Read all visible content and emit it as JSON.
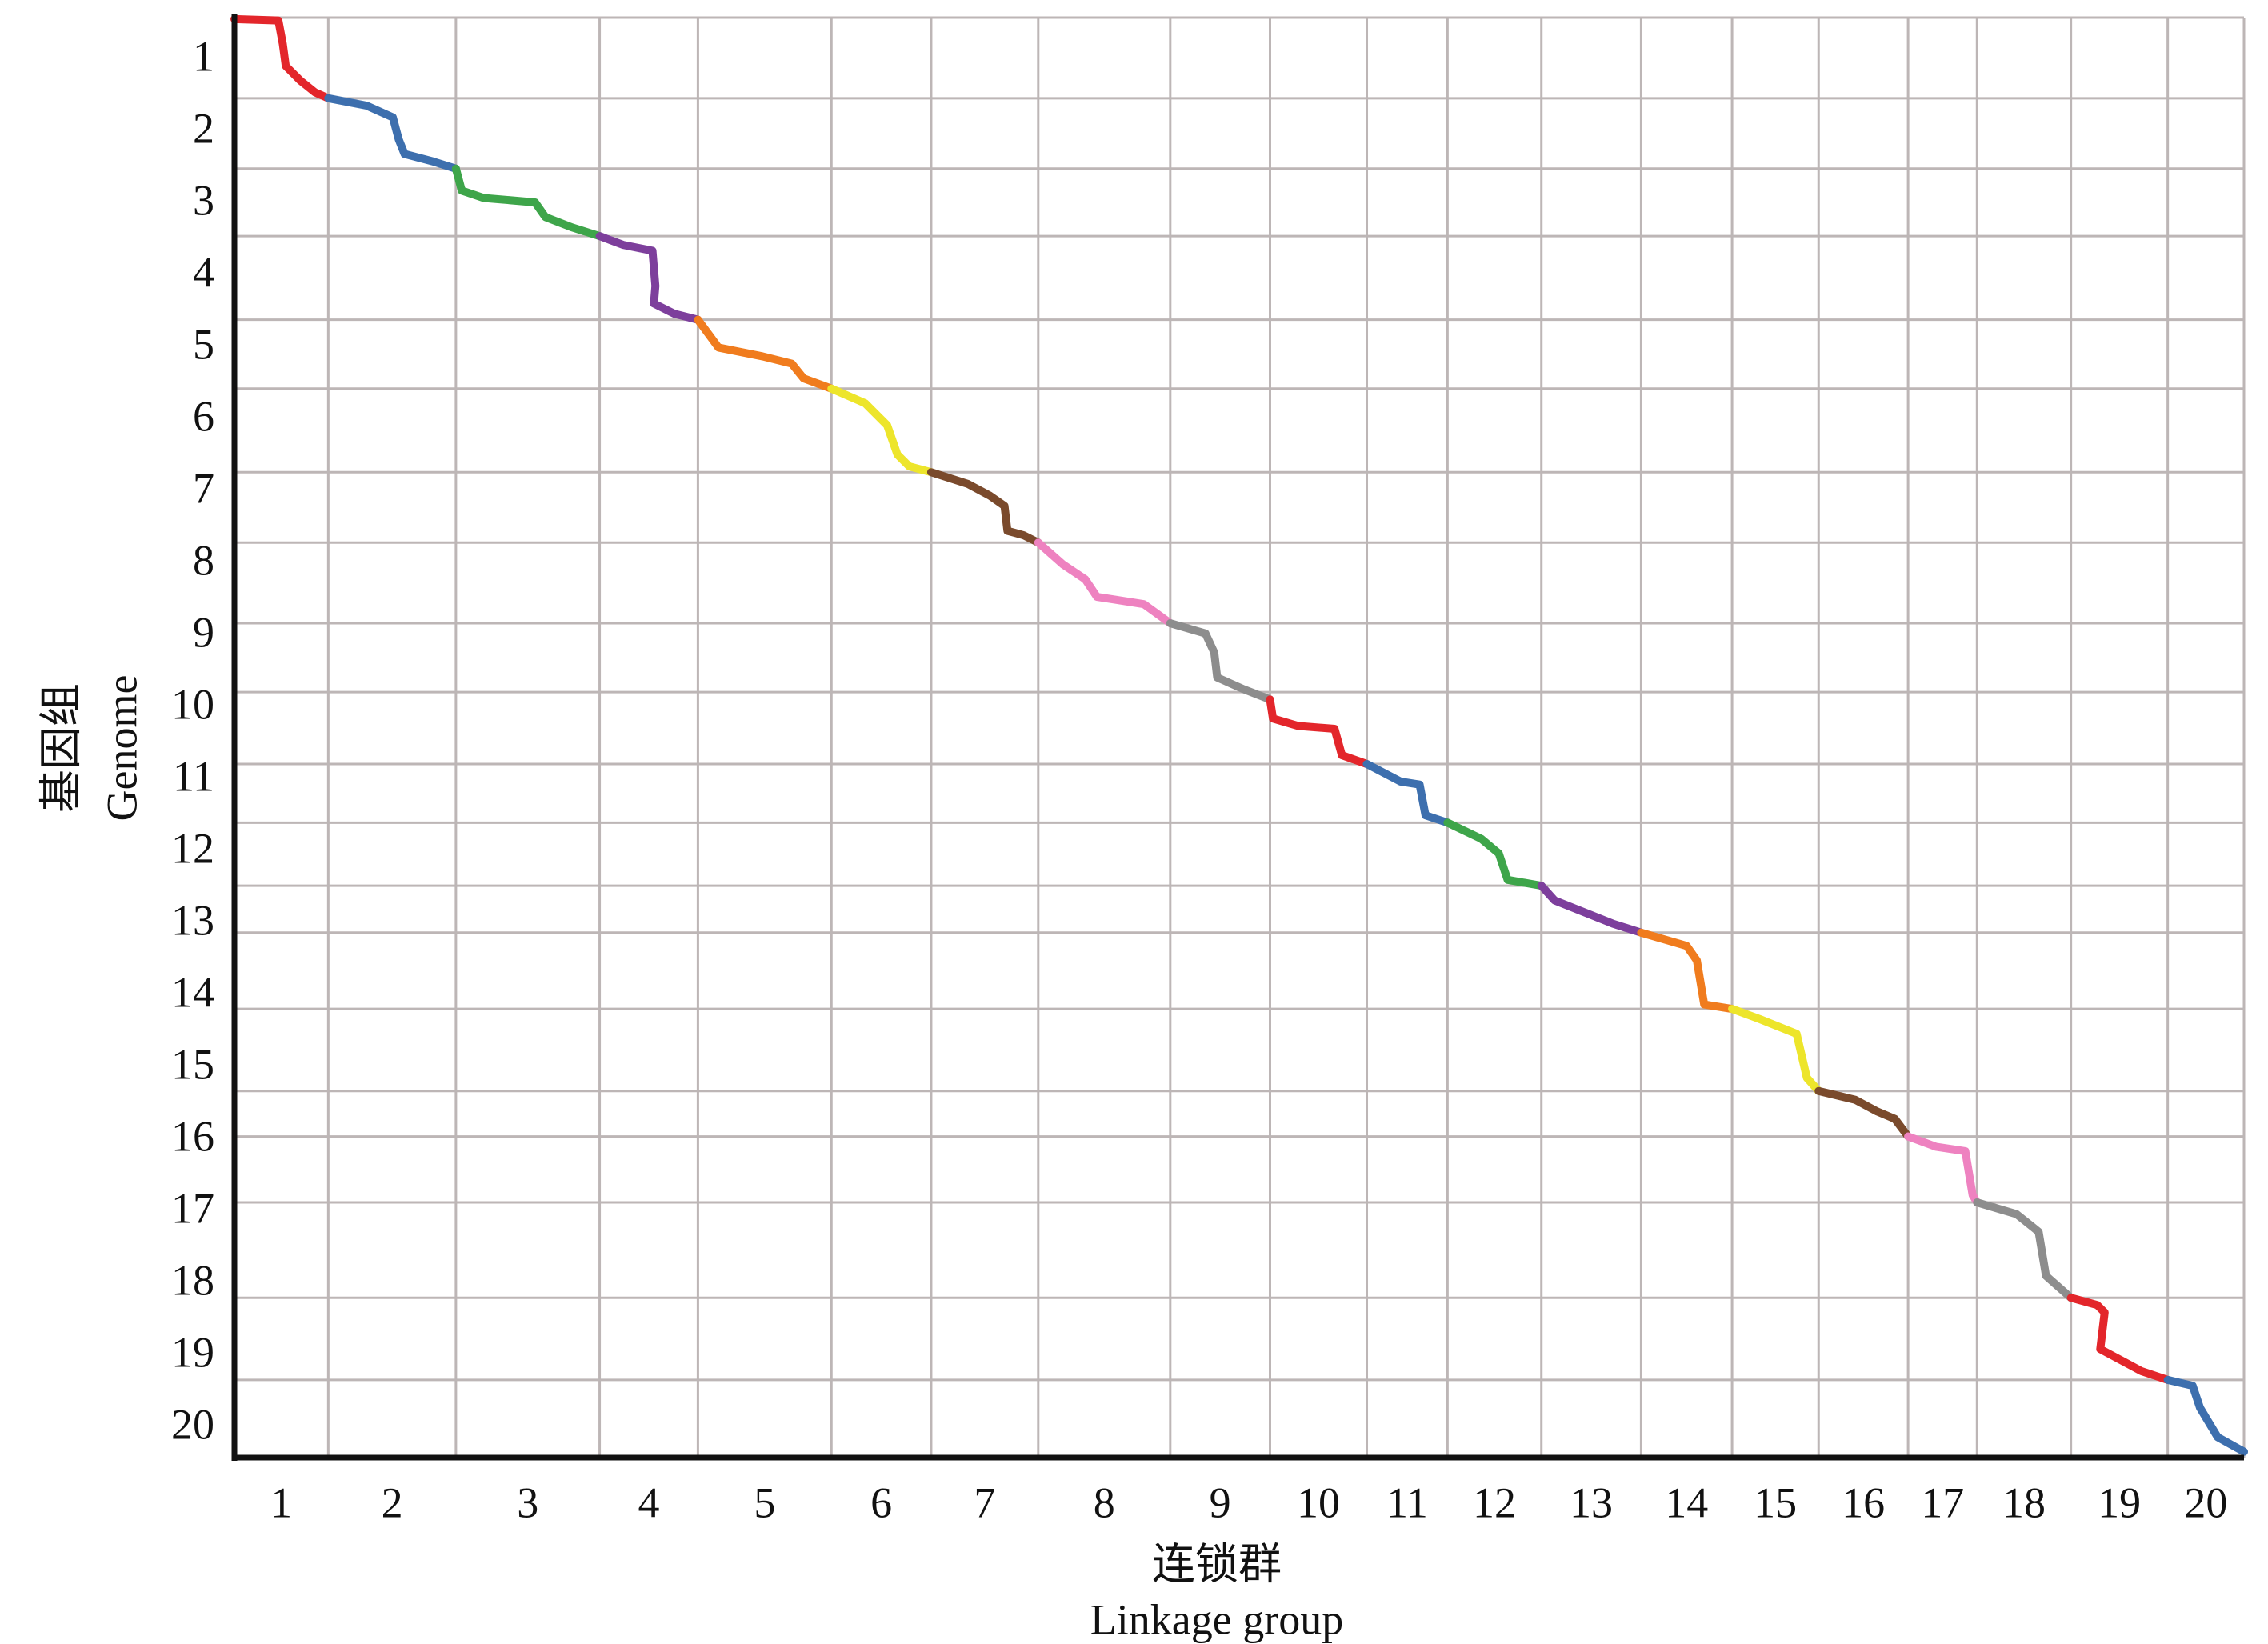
{
  "chart_data": {
    "type": "collinearity",
    "xlabel": "连锁群",
    "xlabel_en": "Linkage group",
    "ylabel": "基因组",
    "ylabel_en": "Genome",
    "categories": [
      "1",
      "2",
      "3",
      "4",
      "5",
      "6",
      "7",
      "8",
      "9",
      "10",
      "11",
      "12",
      "13",
      "14",
      "15",
      "16",
      "17",
      "18",
      "19",
      "20"
    ],
    "y_categories": [
      "1",
      "2",
      "3",
      "4",
      "5",
      "6",
      "7",
      "8",
      "9",
      "10",
      "11",
      "12",
      "13",
      "14",
      "15",
      "16",
      "17",
      "18",
      "19",
      "20"
    ],
    "xlim": [
      0,
      1370
    ],
    "ylim": [
      0,
      982
    ],
    "y_inverted": true,
    "grid": true,
    "x_boundaries": [
      0,
      64,
      151,
      249,
      316,
      407,
      475,
      548,
      638,
      706,
      772,
      827,
      891,
      959,
      1021,
      1080,
      1141,
      1188,
      1252,
      1318,
      1370
    ],
    "y_boundaries": [
      0,
      55,
      103,
      149,
      206,
      253,
      310,
      358,
      413,
      460,
      509,
      549,
      592,
      624,
      676,
      732,
      763,
      808,
      873,
      929,
      982
    ],
    "series": [
      {
        "color": "#e3262b",
        "x": [
          0,
          30,
          33,
          35,
          45,
          55,
          64
        ],
        "values": [
          1,
          2,
          18,
          33,
          43,
          51,
          55
        ]
      },
      {
        "color": "#3d6fae",
        "x": [
          64,
          90,
          108,
          112,
          116,
          135,
          151
        ],
        "values": [
          55,
          60,
          68,
          83,
          93,
          98,
          103
        ]
      },
      {
        "color": "#3ea54a",
        "x": [
          151,
          155,
          170,
          205,
          212,
          230,
          249
        ],
        "values": [
          103,
          118,
          123,
          126,
          136,
          143,
          149
        ]
      },
      {
        "color": "#7d3f9c",
        "x": [
          249,
          265,
          285,
          287,
          286,
          300,
          316
        ],
        "values": [
          149,
          155,
          159,
          183,
          195,
          202,
          206
        ]
      },
      {
        "color": "#f07c1e",
        "x": [
          316,
          330,
          360,
          380,
          388,
          407
        ],
        "values": [
          206,
          225,
          231,
          236,
          246,
          253
        ]
      },
      {
        "color": "#ede52b",
        "x": [
          407,
          430,
          445,
          452,
          460,
          475
        ],
        "values": [
          253,
          263,
          278,
          298,
          306,
          310
        ]
      },
      {
        "color": "#7a4a2c",
        "x": [
          475,
          500,
          515,
          525,
          527,
          538,
          548
        ],
        "values": [
          310,
          318,
          326,
          333,
          350,
          353,
          358
        ]
      },
      {
        "color": "#ee82c0",
        "x": [
          548,
          565,
          580,
          588,
          620,
          638
        ],
        "values": [
          358,
          373,
          383,
          395,
          400,
          413
        ]
      },
      {
        "color": "#8d8d8d",
        "x": [
          638,
          662,
          668,
          670,
          688,
          706
        ],
        "values": [
          413,
          420,
          433,
          450,
          458,
          465
        ]
      },
      {
        "color": "#e3262b",
        "x": [
          706,
          708,
          725,
          750,
          755,
          772
        ],
        "values": [
          465,
          478,
          483,
          485,
          503,
          509
        ]
      },
      {
        "color": "#3d6fae",
        "x": [
          772,
          795,
          808,
          812,
          827
        ],
        "values": [
          509,
          521,
          523,
          544,
          549
        ]
      },
      {
        "color": "#3ea54a",
        "x": [
          827,
          850,
          862,
          868,
          891
        ],
        "values": [
          549,
          560,
          570,
          588,
          592
        ]
      },
      {
        "color": "#7d3f9c",
        "x": [
          891,
          900,
          920,
          940,
          959
        ],
        "values": [
          592,
          602,
          610,
          618,
          624
        ]
      },
      {
        "color": "#f07c1e",
        "x": [
          959,
          990,
          997,
          1002,
          1021
        ],
        "values": [
          624,
          633,
          643,
          673,
          676
        ]
      },
      {
        "color": "#ede52b",
        "x": [
          1021,
          1040,
          1065,
          1072,
          1080
        ],
        "values": [
          676,
          683,
          693,
          723,
          732
        ]
      },
      {
        "color": "#7a4a2c",
        "x": [
          1080,
          1105,
          1120,
          1132,
          1141
        ],
        "values": [
          732,
          738,
          746,
          751,
          763
        ]
      },
      {
        "color": "#ee82c0",
        "x": [
          1141,
          1160,
          1180,
          1185,
          1188
        ],
        "values": [
          763,
          770,
          773,
          803,
          808
        ]
      },
      {
        "color": "#8d8d8d",
        "x": [
          1188,
          1215,
          1230,
          1235,
          1252
        ],
        "values": [
          808,
          816,
          828,
          858,
          873
        ]
      },
      {
        "color": "#e3262b",
        "x": [
          1252,
          1270,
          1275,
          1272,
          1300,
          1318
        ],
        "values": [
          873,
          878,
          883,
          908,
          923,
          929
        ]
      },
      {
        "color": "#3d6fae",
        "x": [
          1318,
          1335,
          1340,
          1352,
          1370
        ],
        "values": [
          929,
          933,
          948,
          968,
          978
        ]
      }
    ]
  }
}
